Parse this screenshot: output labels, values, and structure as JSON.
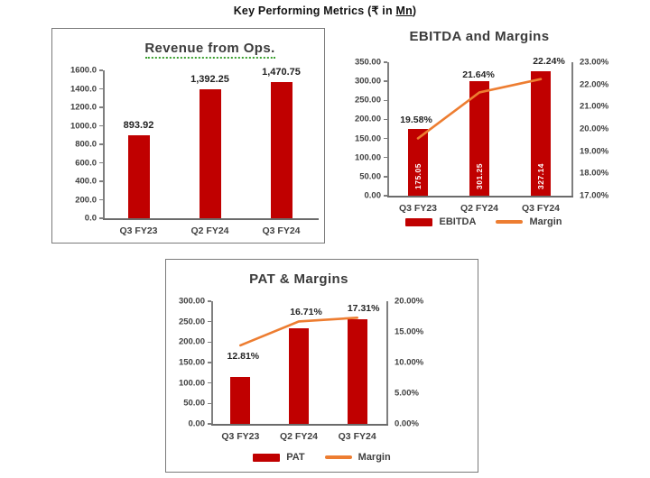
{
  "page": {
    "title_prefix": "Key Performing Metrics (₹ in ",
    "title_underlined": "Mn",
    "title_suffix": ")"
  },
  "colors": {
    "bar": "#c00000",
    "line": "#ed7d31",
    "axis_text": "#404040",
    "data_label": "#222222",
    "box_border": "#7a7a7a",
    "title_text": "#3b3b3b",
    "title_underline_green": "#3aa02f",
    "inside_label": "#ffffff"
  },
  "chart_data": [
    {
      "id": "revenue",
      "type": "bar",
      "title": "Revenue from Ops.",
      "categories": [
        "Q3 FY23",
        "Q2 FY24",
        "Q3 FY24"
      ],
      "values": [
        893.92,
        1392.25,
        1470.75
      ],
      "value_labels": [
        "893.92",
        "1,392.25",
        "1,470.75"
      ],
      "ylim": [
        0,
        1600
      ],
      "yticks": [
        "1600.0",
        "1400.0",
        "1200.0",
        "1000.0",
        "800.0",
        "600.0",
        "400.0",
        "200.0",
        "0.0"
      ],
      "grid": false,
      "legend_position": "none"
    },
    {
      "id": "ebitda",
      "type": "bar+line",
      "title": "EBITDA and Margins",
      "categories": [
        "Q3 FY23",
        "Q2 FY24",
        "Q3 FY24"
      ],
      "series": [
        {
          "name": "EBITDA",
          "chart": "bar",
          "axis": "left",
          "values": [
            175.05,
            301.25,
            327.14
          ],
          "labels": [
            "175.05",
            "301.25",
            "327.14"
          ],
          "label_position": "inside-vertical"
        },
        {
          "name": "Margin",
          "chart": "line",
          "axis": "right",
          "values": [
            19.58,
            21.64,
            22.24
          ],
          "labels": [
            "19.58%",
            "21.64%",
            "22.24%"
          ]
        }
      ],
      "ylim_left": [
        0,
        350
      ],
      "ylim_right": [
        17,
        23
      ],
      "yticks_left": [
        "350.00",
        "300.00",
        "250.00",
        "200.00",
        "150.00",
        "100.00",
        "50.00",
        "0.00"
      ],
      "yticks_right": [
        "23.00%",
        "22.00%",
        "21.00%",
        "20.00%",
        "19.00%",
        "18.00%",
        "17.00%"
      ],
      "legend": [
        "EBITDA",
        "Margin"
      ],
      "grid": false,
      "legend_position": "bottom"
    },
    {
      "id": "pat",
      "type": "bar+line",
      "title": "PAT & Margins",
      "categories": [
        "Q3 FY23",
        "Q2 FY24",
        "Q3 FY24"
      ],
      "series": [
        {
          "name": "PAT",
          "chart": "bar",
          "axis": "left",
          "values": [
            115,
            233,
            255
          ]
        },
        {
          "name": "Margin",
          "chart": "line",
          "axis": "right",
          "values": [
            12.81,
            16.71,
            17.31
          ],
          "labels": [
            "12.81%",
            "16.71%",
            "17.31%"
          ]
        }
      ],
      "ylim_left": [
        0,
        300
      ],
      "ylim_right": [
        0,
        20
      ],
      "yticks_left": [
        "300.00",
        "250.00",
        "200.00",
        "150.00",
        "100.00",
        "50.00",
        "0.00"
      ],
      "yticks_right": [
        "20.00%",
        "15.00%",
        "10.00%",
        "5.00%",
        "0.00%"
      ],
      "legend": [
        "PAT",
        "Margin"
      ],
      "grid": false,
      "legend_position": "bottom"
    }
  ]
}
